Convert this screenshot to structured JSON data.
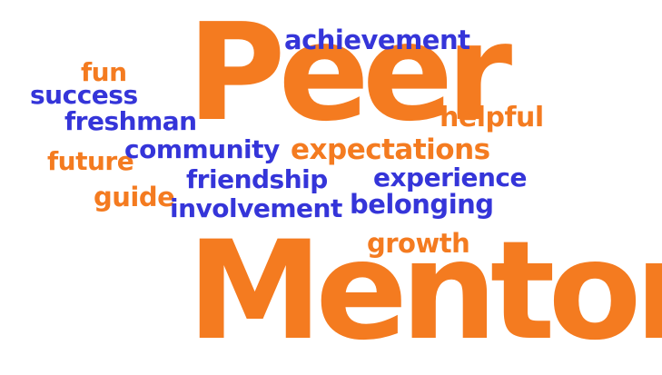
{
  "colors": {
    "orange": "#f47b20",
    "blue": "#3535d9",
    "background": "#ffffff"
  },
  "words": {
    "peer": "Peer",
    "mentor": "Mentor",
    "achievement": "achievement",
    "fun": "fun",
    "success": "success",
    "freshman": "freshman",
    "helpful": "helpful",
    "future": "future",
    "community": "community",
    "expectations": "expectations",
    "friendship": "friendship",
    "experience": "experience",
    "guide": "guide",
    "involvement": "involvement",
    "belonging": "belonging",
    "growth": "growth"
  }
}
